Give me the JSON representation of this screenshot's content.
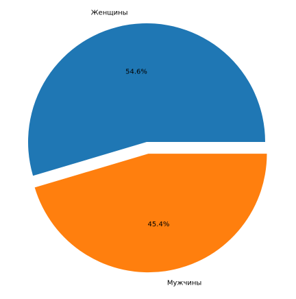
{
  "chart_data": {
    "type": "pie",
    "title": "",
    "startangle_deg": 0,
    "direction": "counterclockwise",
    "explode": [
      0,
      0.1
    ],
    "slices": [
      {
        "label": "Женщины",
        "value": 54.6,
        "pct_text": "54.6%",
        "color": "#1f77b4"
      },
      {
        "label": "Мужчины",
        "value": 45.4,
        "pct_text": "45.4%",
        "color": "#ff7f0e"
      }
    ]
  }
}
